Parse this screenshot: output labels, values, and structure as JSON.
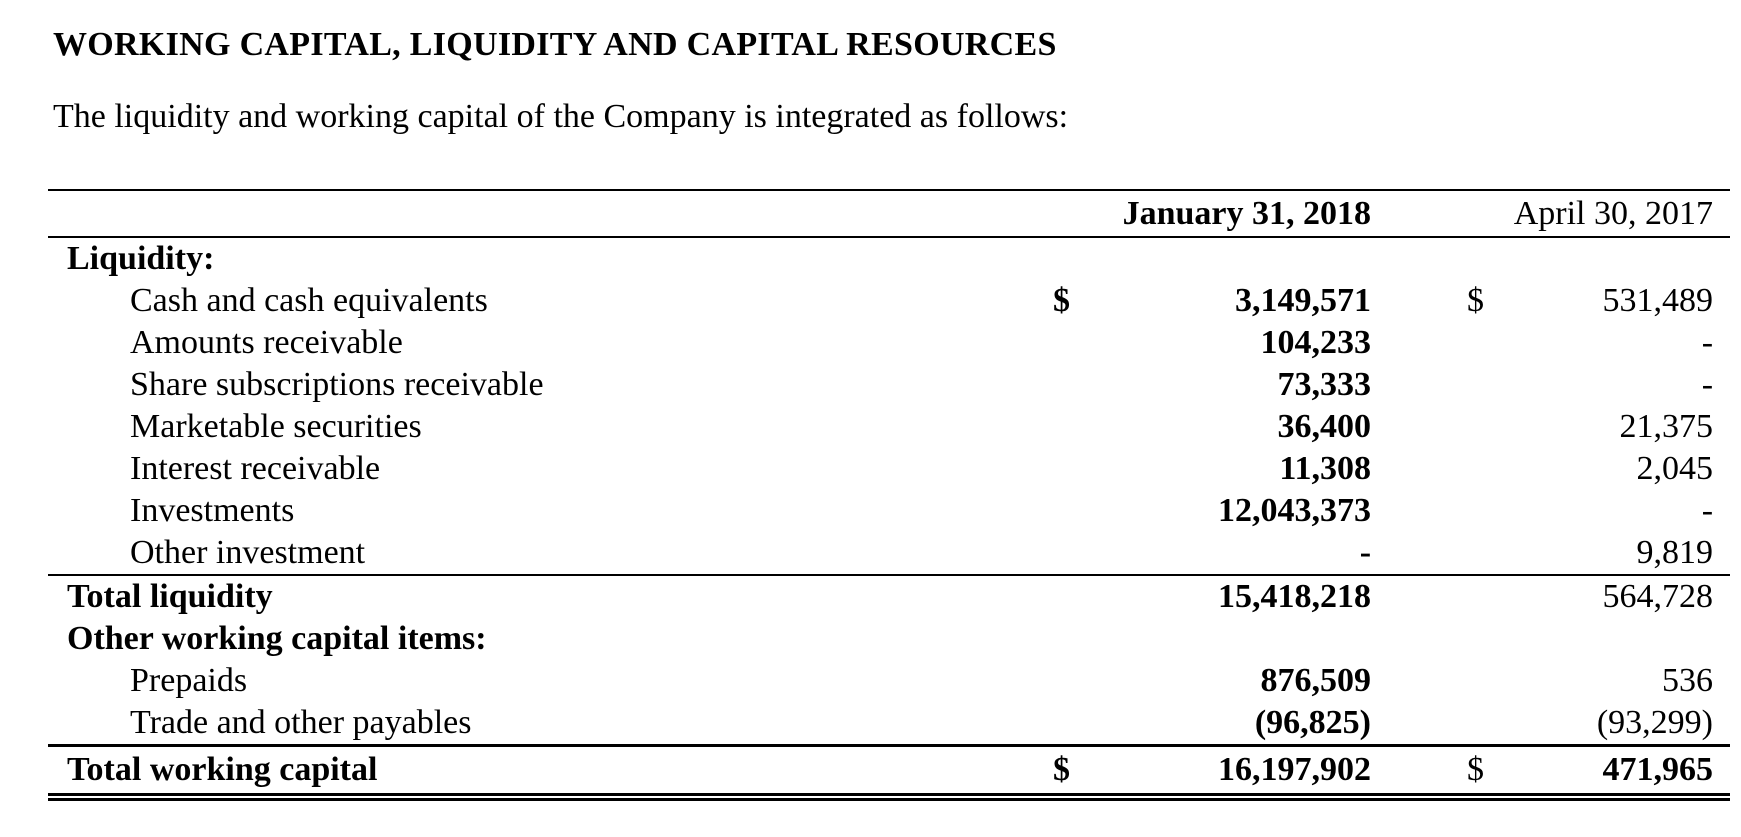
{
  "page": {
    "title": "WORKING CAPITAL, LIQUIDITY AND CAPITAL RESOURCES",
    "intro": "The liquidity and working capital of the Company is integrated as follows:"
  },
  "table": {
    "col_2018": "January 31, 2018",
    "col_2017": "April 30, 2017",
    "rows": [
      {
        "label": "Liquidity:"
      },
      {
        "label": "Cash and cash equivalents",
        "cur_2018": "$",
        "v_2018": "3,149,571",
        "cur_2017": "$",
        "v_2017": "531,489"
      },
      {
        "label": "Amounts receivable",
        "v_2018": "104,233",
        "v_2017": "-"
      },
      {
        "label": "Share subscriptions receivable",
        "v_2018": "73,333",
        "v_2017": "-"
      },
      {
        "label": "Marketable securities",
        "v_2018": "36,400",
        "v_2017": "21,375"
      },
      {
        "label": "Interest receivable",
        "v_2018": "11,308",
        "v_2017": "2,045"
      },
      {
        "label": "Investments",
        "v_2018": "12,043,373",
        "v_2017": "-"
      },
      {
        "label": "Other investment",
        "v_2018": "-",
        "v_2017": "9,819"
      },
      {
        "label": "Total liquidity",
        "v_2018": "15,418,218",
        "v_2017": "564,728"
      },
      {
        "label": "Other working capital items:"
      },
      {
        "label": "Prepaids",
        "v_2018": "876,509",
        "v_2017": "536"
      },
      {
        "label": "Trade and other payables",
        "v_2018": "(96,825)",
        "v_2017": "(93,299)"
      },
      {
        "label": "Total working capital",
        "cur_2018": "$",
        "v_2018": "16,197,902",
        "cur_2017": "$",
        "v_2017": "471,965"
      }
    ]
  }
}
